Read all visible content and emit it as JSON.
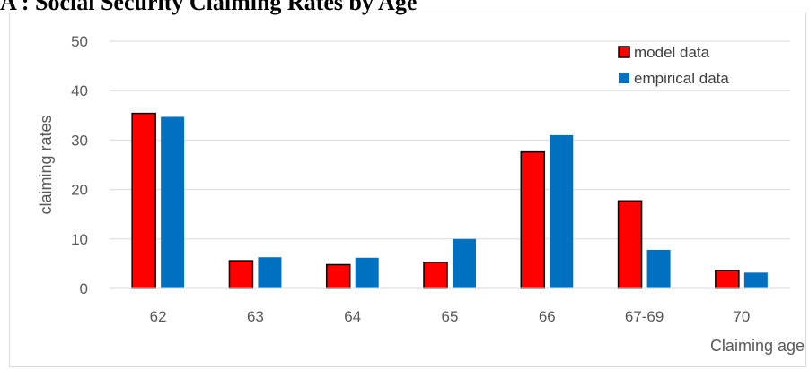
{
  "chart_data": {
    "type": "bar",
    "title": "A : Social Security Claiming Rates by Age",
    "xlabel": "Claiming age",
    "ylabel": "claiming rates",
    "categories": [
      "62",
      "63",
      "64",
      "65",
      "66",
      "67-69",
      "70"
    ],
    "series": [
      {
        "name": "model data",
        "values": [
          35.4,
          5.6,
          4.8,
          5.3,
          27.6,
          17.7,
          3.6
        ],
        "color": "#ff0000"
      },
      {
        "name": "empirical data",
        "values": [
          34.7,
          6.3,
          6.2,
          10.0,
          31.0,
          7.8,
          3.2
        ],
        "color": "#0070c0"
      }
    ],
    "ylim": [
      0,
      50
    ],
    "yticks": [
      0,
      10,
      20,
      30,
      40,
      50
    ],
    "grid": true,
    "legend_position": "top-right"
  }
}
